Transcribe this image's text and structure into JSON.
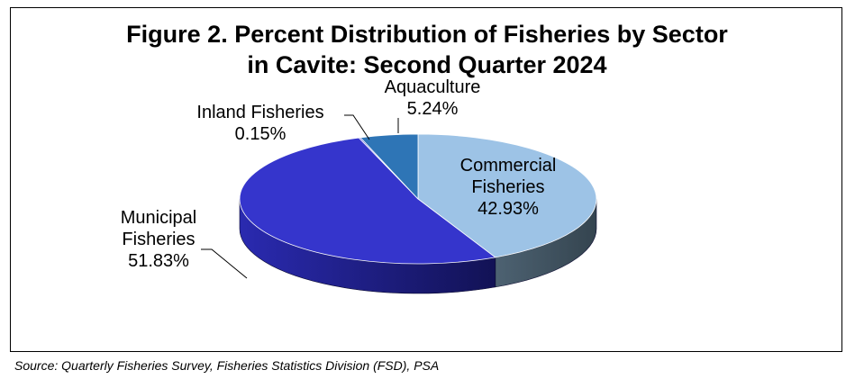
{
  "chart_data": {
    "type": "pie",
    "title_line1": "Figure 2. Percent Distribution of Fisheries by Sector",
    "title_line2": "in Cavite: Second Quarter 2024",
    "categories": [
      "Commercial Fisheries",
      "Municipal Fisheries",
      "Inland Fisheries",
      "Aquaculture"
    ],
    "values": [
      42.93,
      51.83,
      0.15,
      5.24
    ],
    "unit": "%",
    "colors": [
      "#9dc3e6",
      "#3535cc",
      "#3535cc",
      "#2e75b6"
    ],
    "three_d": true,
    "legend": "none",
    "labels": [
      {
        "lines": [
          "Commercial",
          "Fisheries",
          "42.93%"
        ]
      },
      {
        "lines": [
          "Municipal",
          "Fisheries",
          "51.83%"
        ]
      },
      {
        "lines": [
          "Inland Fisheries",
          "0.15%"
        ]
      },
      {
        "lines": [
          "Aquaculture",
          "5.24%"
        ]
      }
    ]
  },
  "source": "Source: Quarterly Fisheries Survey, Fisheries Statistics Division (FSD), PSA"
}
